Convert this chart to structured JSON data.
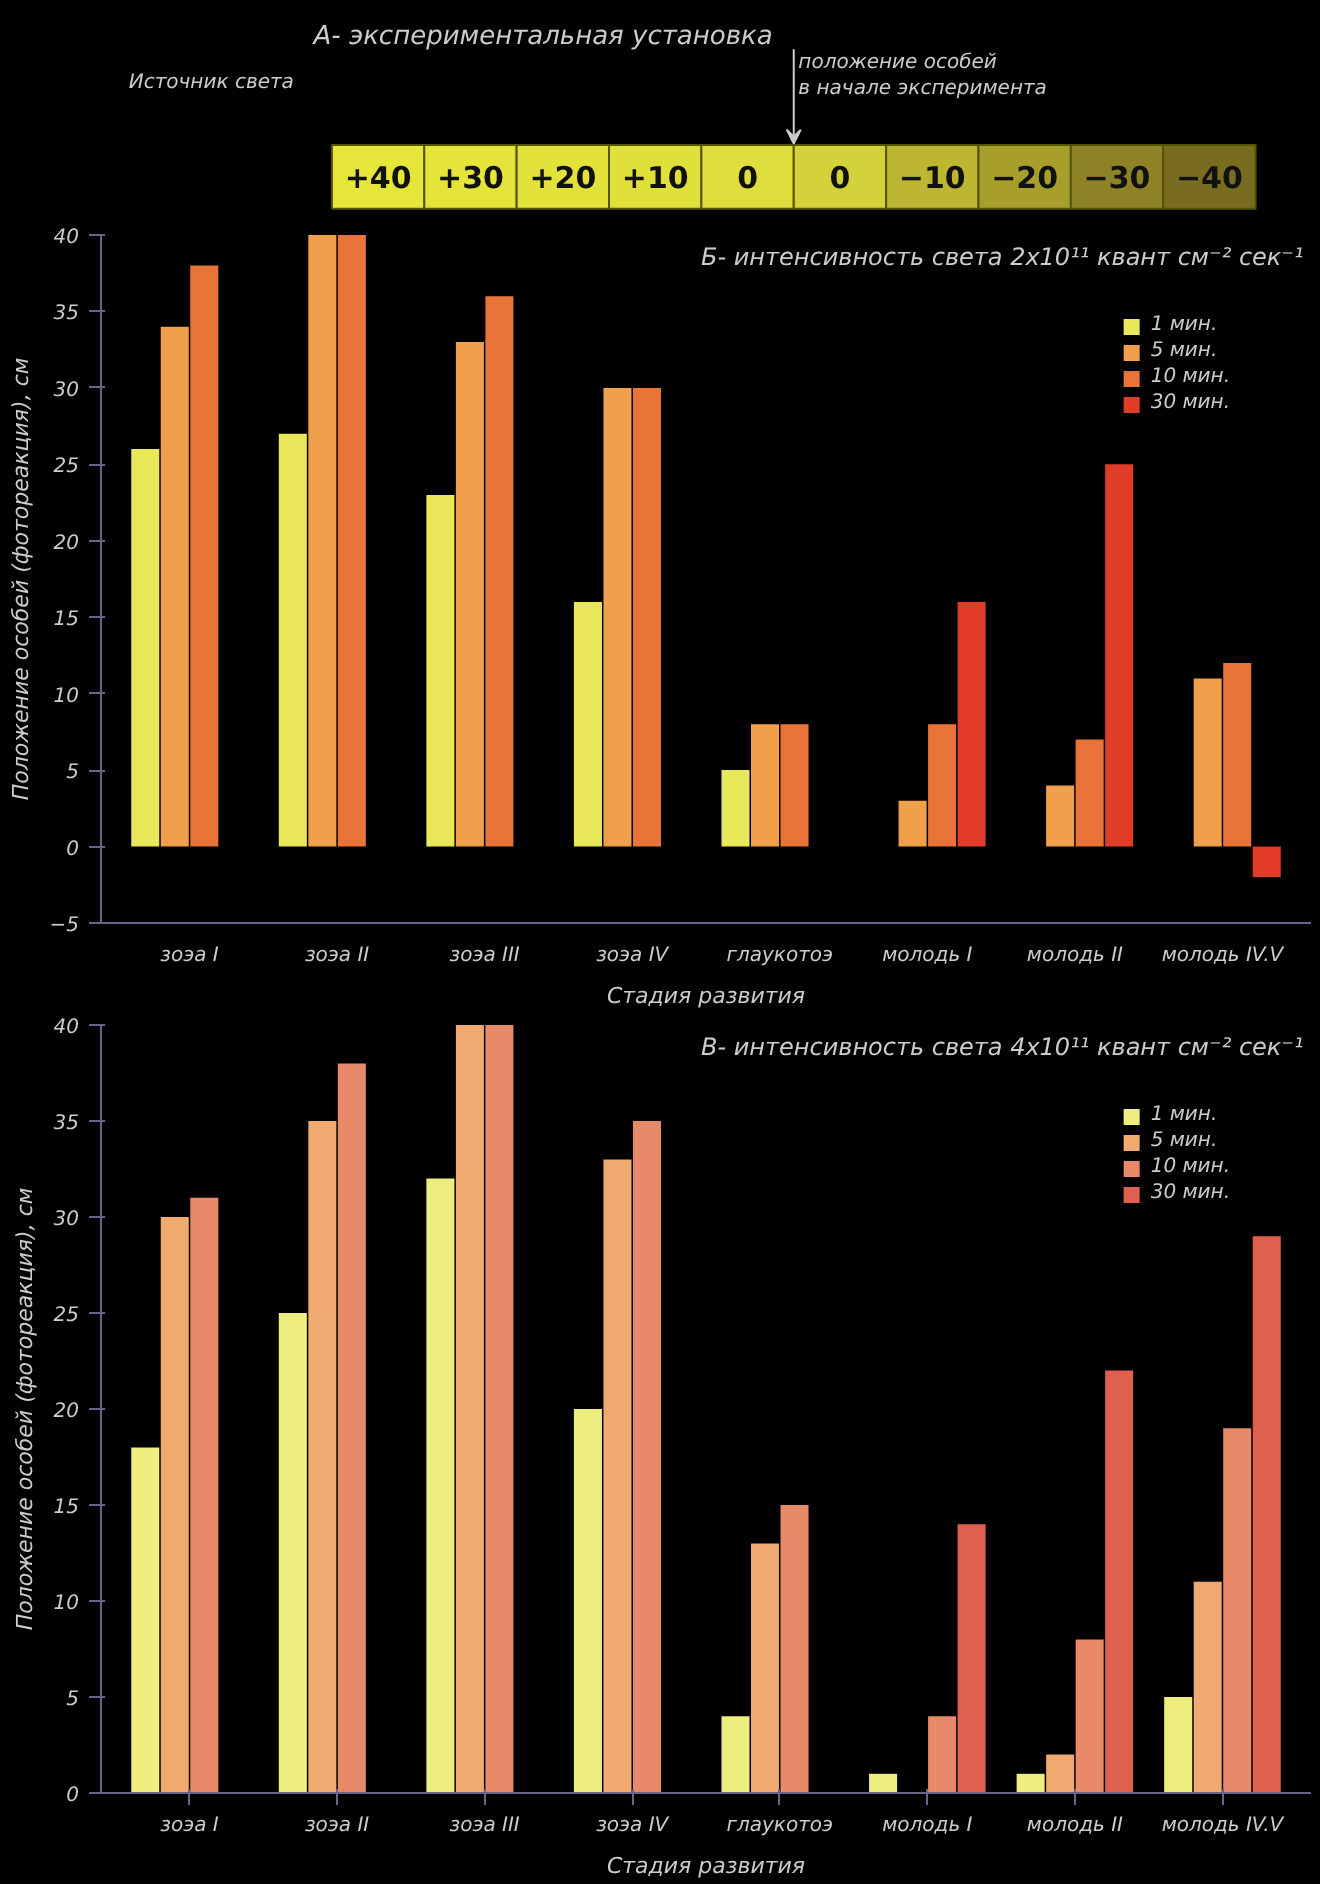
{
  "chart_data": [
    {
      "type": "other",
      "title": "А- экспериментальная установка",
      "categories": [
        "+40",
        "+30",
        "+20",
        "+10",
        "0",
        "0",
        "−10",
        "−20",
        "−30",
        "−40"
      ],
      "colors": [
        "#e6e63a",
        "#e4e43a",
        "#e2e23a",
        "#e0e03a",
        "#dede3c",
        "#d4d23a",
        "#bcb632",
        "#a89e2c",
        "#8e8226",
        "#786c20"
      ],
      "annotations": [
        "Источник света",
        "положение особей в начале эксперимента"
      ]
    },
    {
      "type": "bar",
      "title": "Б- интенсивность света 2x10¹¹ квант см⁻² сек⁻¹",
      "xlabel": "Стадия развития",
      "ylabel": "Положение особей (фотореакция), см",
      "categories": [
        "зоэа I",
        "зоэа II",
        "зоэа III",
        "зоэа IV",
        "глаукотоэ",
        "молодь I",
        "молодь II",
        "молодь IV.V"
      ],
      "ylim": [
        -5,
        40
      ],
      "yticks": [
        -5,
        0,
        5,
        10,
        15,
        20,
        25,
        30,
        35,
        40
      ],
      "grid": false,
      "legend": "top right",
      "series": [
        {
          "name": "1 мин.",
          "color": "#e8e85a",
          "values": [
            26,
            27,
            23,
            16,
            5,
            null,
            null,
            null
          ]
        },
        {
          "name": "5 мин.",
          "color": "#f0a04a",
          "values": [
            34,
            40,
            33,
            30,
            8,
            3,
            4,
            11
          ]
        },
        {
          "name": "10 мин.",
          "color": "#e8743a",
          "values": [
            38,
            40,
            36,
            30,
            8,
            8,
            7,
            12
          ]
        },
        {
          "name": "30 мин.",
          "color": "#e03c28",
          "values": [
            null,
            null,
            null,
            null,
            null,
            16,
            25,
            -2
          ]
        }
      ]
    },
    {
      "type": "bar",
      "title": "В- интенсивность света 4x10¹¹ квант см⁻² сек⁻¹",
      "xlabel": "Стадия развития",
      "ylabel": "Положение особей (фотореакция), см",
      "categories": [
        "зоэа I",
        "зоэа II",
        "зоэа III",
        "зоэа IV",
        "глаукотоэ",
        "молодь I",
        "молодь II",
        "молодь IV.V"
      ],
      "ylim": [
        0,
        40
      ],
      "yticks": [
        0,
        5,
        10,
        15,
        20,
        25,
        30,
        35,
        40
      ],
      "grid": false,
      "legend": "top right",
      "series": [
        {
          "name": "1 мин.",
          "color": "#eeee80",
          "values": [
            18,
            25,
            32,
            20,
            4,
            1,
            1,
            5
          ]
        },
        {
          "name": "5 мин.",
          "color": "#f0aa70",
          "values": [
            30,
            35,
            40,
            33,
            13,
            null,
            2,
            11
          ]
        },
        {
          "name": "10 мин.",
          "color": "#e88a6a",
          "values": [
            31,
            38,
            40,
            35,
            15,
            4,
            8,
            19
          ]
        },
        {
          "name": "30 мин.",
          "color": "#e06050",
          "values": [
            null,
            null,
            null,
            null,
            null,
            14,
            22,
            29
          ]
        }
      ]
    }
  ]
}
